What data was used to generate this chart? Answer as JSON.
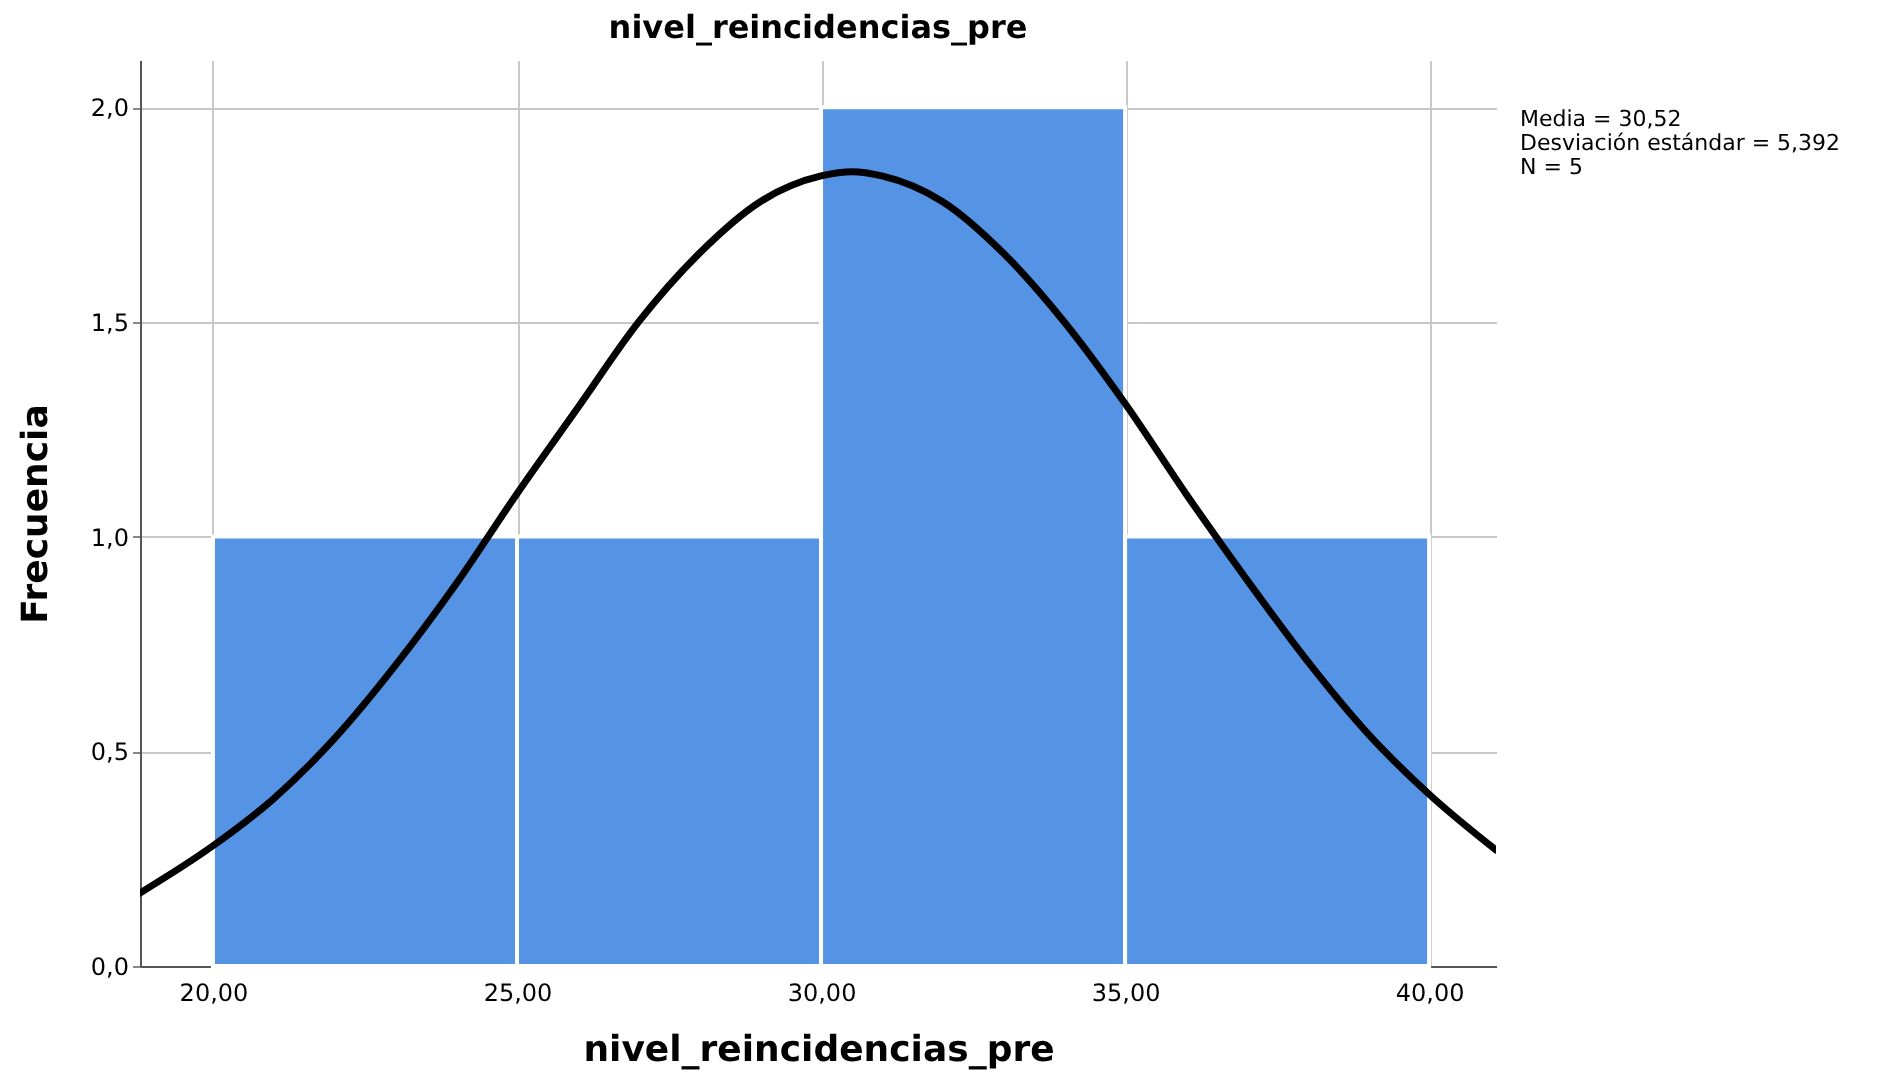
{
  "chart_data": {
    "type": "histogram",
    "title": "nivel_reincidencias_pre",
    "xlabel": "nivel_reincidencias_pre",
    "ylabel": "Frecuencia",
    "bins": [
      20,
      25,
      30,
      35,
      40
    ],
    "values": [
      1,
      1,
      2,
      1
    ],
    "color": "#5594e4",
    "series": [
      {
        "type": "line",
        "color": "#000000",
        "x": [
          18.8,
          20,
          21,
          22,
          23,
          24,
          25,
          26,
          27,
          28,
          29,
          30,
          30.52,
          31,
          32,
          33,
          34,
          35,
          36,
          37,
          38,
          39,
          40,
          41.1
        ],
        "values": [
          0.17,
          0.28,
          0.39,
          0.53,
          0.7,
          0.89,
          1.1,
          1.3,
          1.5,
          1.66,
          1.78,
          1.84,
          1.85,
          1.84,
          1.78,
          1.66,
          1.5,
          1.31,
          1.1,
          0.9,
          0.71,
          0.54,
          0.4,
          0.27
        ]
      }
    ],
    "xlim": [
      18.8,
      41.1
    ],
    "ylim": [
      0,
      2.11
    ],
    "xticks": [
      {
        "value": 20,
        "label": "20,00"
      },
      {
        "value": 25,
        "label": "25,00"
      },
      {
        "value": 30,
        "label": "30,00"
      },
      {
        "value": 35,
        "label": "35,00"
      },
      {
        "value": 40,
        "label": "40,00"
      }
    ],
    "yticks": [
      {
        "value": 0,
        "label": "0,0"
      },
      {
        "value": 0.5,
        "label": "0,5"
      },
      {
        "value": 1,
        "label": "1,0"
      },
      {
        "value": 1.5,
        "label": "1,5"
      },
      {
        "value": 2,
        "label": "2,0"
      }
    ],
    "grid": true,
    "line_style": "solid",
    "annotations": [
      "Media = 30,52",
      "Desviación estándar = 5,392",
      "N = 5"
    ]
  }
}
